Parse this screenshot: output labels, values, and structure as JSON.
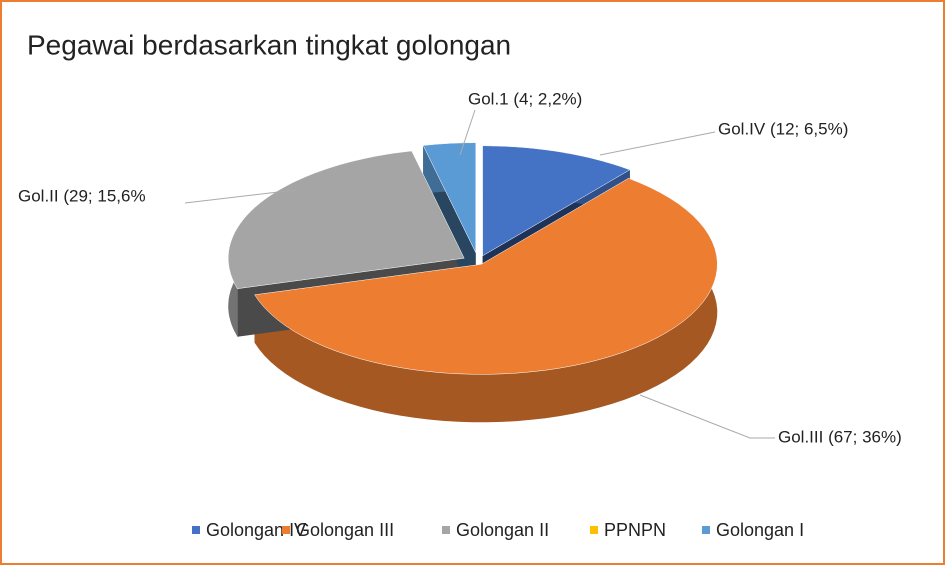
{
  "chart_data": {
    "type": "pie3d",
    "title": "Pegawai berdasarkan tingkat golongan",
    "categories": [
      "Golongan IV",
      "Golongan III",
      "Golongan II",
      "PPNPN",
      "Golongan I"
    ],
    "values": [
      12,
      67,
      29,
      null,
      4
    ],
    "value_labels": [
      "Gol.IV (12; 6,5%)",
      "Gol.III (67; 36%)",
      "Gol.II (29; 15,6%",
      null,
      "Gol.1 (4; 2,2%)"
    ],
    "colors": [
      "#4472C4",
      "#ED7D31",
      "#A5A5A5",
      "#FFC000",
      "#5B9BD5"
    ],
    "legend": "bottom"
  }
}
